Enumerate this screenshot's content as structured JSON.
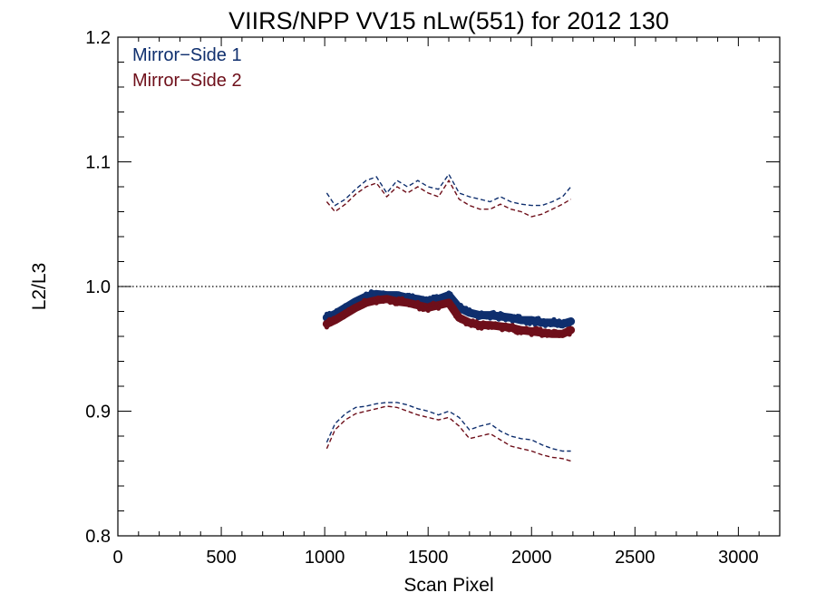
{
  "chart_data": {
    "type": "line",
    "title": "VIIRS/NPP VV15 nLw(551) for 2012 130",
    "xlabel": "Scan Pixel",
    "ylabel": "L2/L3",
    "xlim": [
      0,
      3200
    ],
    "ylim": [
      0.8,
      1.2
    ],
    "xticks": [
      0,
      500,
      1000,
      1500,
      2000,
      2500,
      3000
    ],
    "xtick_labels": [
      "0",
      "500",
      "1000",
      "1500",
      "2000",
      "2500",
      "3000"
    ],
    "yticks": [
      0.8,
      0.9,
      1.0,
      1.1,
      1.2
    ],
    "ytick_labels": [
      "0.8",
      "0.9",
      "1.0",
      "1.1",
      "1.2"
    ],
    "reference_line": 1.0,
    "grid": false,
    "legend_position": "top-left",
    "legend": [
      "Mirror−Side 1",
      "Mirror−Side 2"
    ],
    "colors": {
      "ms1": "#0f2f6e",
      "ms2": "#6e0f1a",
      "ref": "#000000"
    },
    "series": [
      {
        "name": "Mirror−Side 1",
        "color": "#0f2f6e",
        "mean": {
          "x": [
            1010,
            1050,
            1100,
            1150,
            1200,
            1250,
            1300,
            1350,
            1400,
            1450,
            1500,
            1550,
            1600,
            1650,
            1700,
            1750,
            1800,
            1850,
            1900,
            1950,
            2000,
            2050,
            2100,
            2150,
            2190
          ],
          "y": [
            0.975,
            0.978,
            0.983,
            0.988,
            0.992,
            0.994,
            0.993,
            0.993,
            0.991,
            0.99,
            0.988,
            0.99,
            0.993,
            0.983,
            0.979,
            0.977,
            0.977,
            0.976,
            0.975,
            0.973,
            0.973,
            0.971,
            0.971,
            0.97,
            0.972
          ]
        },
        "upper": {
          "x": [
            1010,
            1050,
            1100,
            1150,
            1200,
            1250,
            1300,
            1350,
            1400,
            1450,
            1500,
            1550,
            1600,
            1650,
            1700,
            1750,
            1800,
            1850,
            1900,
            1950,
            2000,
            2050,
            2100,
            2150,
            2190
          ],
          "y": [
            1.075,
            1.065,
            1.07,
            1.078,
            1.085,
            1.088,
            1.075,
            1.085,
            1.08,
            1.085,
            1.08,
            1.078,
            1.09,
            1.075,
            1.072,
            1.07,
            1.068,
            1.072,
            1.068,
            1.066,
            1.065,
            1.065,
            1.068,
            1.072,
            1.08
          ]
        },
        "lower": {
          "x": [
            1010,
            1050,
            1100,
            1150,
            1200,
            1250,
            1300,
            1350,
            1400,
            1450,
            1500,
            1550,
            1600,
            1650,
            1700,
            1750,
            1800,
            1850,
            1900,
            1950,
            2000,
            2050,
            2100,
            2150,
            2190
          ],
          "y": [
            0.875,
            0.89,
            0.898,
            0.903,
            0.904,
            0.906,
            0.907,
            0.907,
            0.905,
            0.902,
            0.9,
            0.897,
            0.9,
            0.895,
            0.885,
            0.888,
            0.89,
            0.884,
            0.88,
            0.878,
            0.877,
            0.873,
            0.87,
            0.868,
            0.868
          ]
        }
      },
      {
        "name": "Mirror−Side 2",
        "color": "#6e0f1a",
        "mean": {
          "x": [
            1010,
            1050,
            1100,
            1150,
            1200,
            1250,
            1300,
            1350,
            1400,
            1450,
            1500,
            1550,
            1600,
            1650,
            1700,
            1750,
            1800,
            1850,
            1900,
            1950,
            2000,
            2050,
            2100,
            2150,
            2190
          ],
          "y": [
            0.97,
            0.973,
            0.978,
            0.983,
            0.987,
            0.989,
            0.99,
            0.988,
            0.987,
            0.985,
            0.983,
            0.985,
            0.987,
            0.975,
            0.971,
            0.969,
            0.969,
            0.968,
            0.967,
            0.965,
            0.964,
            0.963,
            0.962,
            0.962,
            0.965
          ]
        },
        "upper": {
          "x": [
            1010,
            1050,
            1100,
            1150,
            1200,
            1250,
            1300,
            1350,
            1400,
            1450,
            1500,
            1550,
            1600,
            1650,
            1700,
            1750,
            1800,
            1850,
            1900,
            1950,
            2000,
            2050,
            2100,
            2150,
            2190
          ],
          "y": [
            1.068,
            1.06,
            1.066,
            1.074,
            1.08,
            1.083,
            1.072,
            1.08,
            1.075,
            1.08,
            1.075,
            1.072,
            1.085,
            1.07,
            1.065,
            1.062,
            1.062,
            1.066,
            1.062,
            1.06,
            1.056,
            1.058,
            1.062,
            1.066,
            1.07
          ]
        },
        "lower": {
          "x": [
            1010,
            1050,
            1100,
            1150,
            1200,
            1250,
            1300,
            1350,
            1400,
            1450,
            1500,
            1550,
            1600,
            1650,
            1700,
            1750,
            1800,
            1850,
            1900,
            1950,
            2000,
            2050,
            2100,
            2150,
            2190
          ],
          "y": [
            0.87,
            0.885,
            0.893,
            0.898,
            0.9,
            0.902,
            0.904,
            0.903,
            0.9,
            0.897,
            0.895,
            0.893,
            0.895,
            0.888,
            0.878,
            0.88,
            0.882,
            0.877,
            0.872,
            0.87,
            0.868,
            0.865,
            0.863,
            0.862,
            0.86
          ]
        }
      }
    ]
  }
}
